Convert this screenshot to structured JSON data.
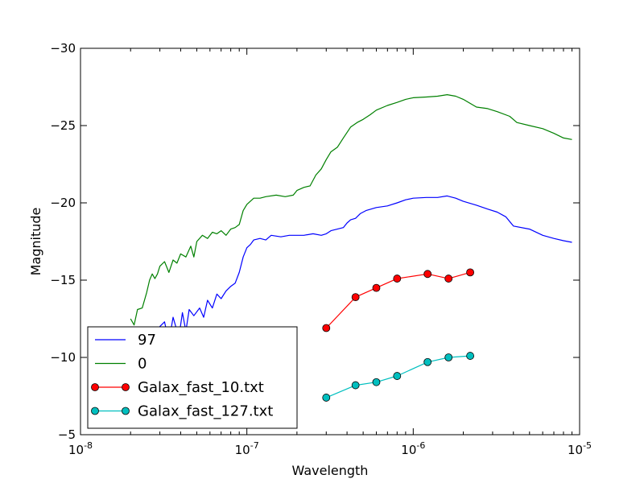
{
  "chart_data": {
    "type": "line",
    "xlabel": "Wavelength",
    "ylabel": "Magnitude",
    "x_scale": "log",
    "xlim": [
      1e-08,
      1e-05
    ],
    "ylim": [
      -5,
      -30
    ],
    "y_inverted": true,
    "grid": false,
    "legend_position": "lower-left",
    "x_ticks": [
      {
        "value": 1e-08,
        "base": "10",
        "exp": "-8"
      },
      {
        "value": 1e-07,
        "base": "10",
        "exp": "-7"
      },
      {
        "value": 1e-06,
        "base": "10",
        "exp": "-6"
      },
      {
        "value": 1e-05,
        "base": "10",
        "exp": "-5"
      }
    ],
    "y_ticks": [
      {
        "value": -30,
        "label": "−30"
      },
      {
        "value": -25,
        "label": "−25"
      },
      {
        "value": -20,
        "label": "−20"
      },
      {
        "value": -15,
        "label": "−15"
      },
      {
        "value": -10,
        "label": "−10"
      },
      {
        "value": -5,
        "label": "−5"
      }
    ],
    "series": [
      {
        "name": "97",
        "style": "line",
        "color": "#0000ff",
        "points": [
          [
            2.2e-08,
            -7.5
          ],
          [
            2.8e-08,
            -9.5
          ],
          [
            3e-08,
            -12.0
          ],
          [
            3.2e-08,
            -12.3
          ],
          [
            3.4e-08,
            -11.0
          ],
          [
            3.6e-08,
            -12.6
          ],
          [
            3.9e-08,
            -11.3
          ],
          [
            4.1e-08,
            -12.9
          ],
          [
            4.3e-08,
            -11.7
          ],
          [
            4.5e-08,
            -13.1
          ],
          [
            4.8e-08,
            -12.7
          ],
          [
            5.2e-08,
            -13.2
          ],
          [
            5.5e-08,
            -12.6
          ],
          [
            5.8e-08,
            -13.7
          ],
          [
            6.2e-08,
            -13.2
          ],
          [
            6.6e-08,
            -14.1
          ],
          [
            7e-08,
            -13.8
          ],
          [
            7.5e-08,
            -14.3
          ],
          [
            8e-08,
            -14.6
          ],
          [
            8.5e-08,
            -14.8
          ],
          [
            9e-08,
            -15.5
          ],
          [
            9.5e-08,
            -16.5
          ],
          [
            1e-07,
            -17.1
          ],
          [
            1.05e-07,
            -17.3
          ],
          [
            1.1e-07,
            -17.6
          ],
          [
            1.2e-07,
            -17.7
          ],
          [
            1.3e-07,
            -17.6
          ],
          [
            1.4e-07,
            -17.9
          ],
          [
            1.6e-07,
            -17.8
          ],
          [
            1.8e-07,
            -17.9
          ],
          [
            2e-07,
            -17.9
          ],
          [
            2.2e-07,
            -17.9
          ],
          [
            2.5e-07,
            -18.0
          ],
          [
            2.8e-07,
            -17.9
          ],
          [
            3e-07,
            -18.0
          ],
          [
            3.2e-07,
            -18.2
          ],
          [
            3.5e-07,
            -18.3
          ],
          [
            3.8e-07,
            -18.4
          ],
          [
            4e-07,
            -18.7
          ],
          [
            4.2e-07,
            -18.9
          ],
          [
            4.5e-07,
            -19.0
          ],
          [
            4.8e-07,
            -19.3
          ],
          [
            5.2e-07,
            -19.5
          ],
          [
            6e-07,
            -19.7
          ],
          [
            7e-07,
            -19.8
          ],
          [
            8e-07,
            -20.0
          ],
          [
            9e-07,
            -20.2
          ],
          [
            1e-06,
            -20.3
          ],
          [
            1.2e-06,
            -20.35
          ],
          [
            1.4e-06,
            -20.35
          ],
          [
            1.6e-06,
            -20.45
          ],
          [
            1.8e-06,
            -20.3
          ],
          [
            2e-06,
            -20.1
          ],
          [
            2.4e-06,
            -19.85
          ],
          [
            2.8e-06,
            -19.6
          ],
          [
            3.2e-06,
            -19.4
          ],
          [
            3.6e-06,
            -19.1
          ],
          [
            4e-06,
            -18.5
          ],
          [
            5e-06,
            -18.3
          ],
          [
            6e-06,
            -17.9
          ],
          [
            7e-06,
            -17.7
          ],
          [
            8e-06,
            -17.55
          ],
          [
            9e-06,
            -17.45
          ]
        ]
      },
      {
        "name": "0",
        "style": "line",
        "color": "#008000",
        "points": [
          [
            2e-08,
            -12.5
          ],
          [
            2.1e-08,
            -12.1
          ],
          [
            2.2e-08,
            -13.1
          ],
          [
            2.35e-08,
            -13.2
          ],
          [
            2.5e-08,
            -14.2
          ],
          [
            2.6e-08,
            -15.0
          ],
          [
            2.7e-08,
            -15.4
          ],
          [
            2.8e-08,
            -15.1
          ],
          [
            2.9e-08,
            -15.4
          ],
          [
            3e-08,
            -15.9
          ],
          [
            3.2e-08,
            -16.2
          ],
          [
            3.4e-08,
            -15.5
          ],
          [
            3.6e-08,
            -16.3
          ],
          [
            3.8e-08,
            -16.1
          ],
          [
            4e-08,
            -16.7
          ],
          [
            4.3e-08,
            -16.5
          ],
          [
            4.6e-08,
            -17.2
          ],
          [
            4.8e-08,
            -16.5
          ],
          [
            5e-08,
            -17.5
          ],
          [
            5.4e-08,
            -17.9
          ],
          [
            5.8e-08,
            -17.7
          ],
          [
            6.2e-08,
            -18.1
          ],
          [
            6.6e-08,
            -18.0
          ],
          [
            7e-08,
            -18.2
          ],
          [
            7.5e-08,
            -17.9
          ],
          [
            8e-08,
            -18.3
          ],
          [
            8.5e-08,
            -18.4
          ],
          [
            9e-08,
            -18.6
          ],
          [
            9.5e-08,
            -19.5
          ],
          [
            1e-07,
            -19.9
          ],
          [
            1.1e-07,
            -20.3
          ],
          [
            1.2e-07,
            -20.3
          ],
          [
            1.3e-07,
            -20.4
          ],
          [
            1.5e-07,
            -20.5
          ],
          [
            1.7e-07,
            -20.4
          ],
          [
            1.9e-07,
            -20.5
          ],
          [
            2e-07,
            -20.8
          ],
          [
            2.2e-07,
            -21.0
          ],
          [
            2.4e-07,
            -21.1
          ],
          [
            2.6e-07,
            -21.8
          ],
          [
            2.8e-07,
            -22.2
          ],
          [
            3e-07,
            -22.8
          ],
          [
            3.2e-07,
            -23.3
          ],
          [
            3.5e-07,
            -23.6
          ],
          [
            3.8e-07,
            -24.2
          ],
          [
            4.2e-07,
            -24.9
          ],
          [
            4.6e-07,
            -25.2
          ],
          [
            5e-07,
            -25.4
          ],
          [
            5.5e-07,
            -25.7
          ],
          [
            6e-07,
            -26.0
          ],
          [
            7e-07,
            -26.3
          ],
          [
            8e-07,
            -26.5
          ],
          [
            9e-07,
            -26.7
          ],
          [
            1e-06,
            -26.8
          ],
          [
            1.2e-06,
            -26.85
          ],
          [
            1.4e-06,
            -26.9
          ],
          [
            1.6e-06,
            -27.0
          ],
          [
            1.8e-06,
            -26.9
          ],
          [
            2e-06,
            -26.7
          ],
          [
            2.4e-06,
            -26.2
          ],
          [
            2.8e-06,
            -26.1
          ],
          [
            3.2e-06,
            -25.9
          ],
          [
            3.8e-06,
            -25.6
          ],
          [
            4.2e-06,
            -25.2
          ],
          [
            5e-06,
            -25.0
          ],
          [
            6e-06,
            -24.8
          ],
          [
            7e-06,
            -24.5
          ],
          [
            8e-06,
            -24.2
          ],
          [
            9e-06,
            -24.1
          ]
        ]
      },
      {
        "name": "Galax_fast_10.txt",
        "style": "line-marker",
        "color": "#ff0000",
        "points": [
          [
            3e-07,
            -11.9
          ],
          [
            4.5e-07,
            -13.9
          ],
          [
            6e-07,
            -14.5
          ],
          [
            8e-07,
            -15.1
          ],
          [
            1.22e-06,
            -15.4
          ],
          [
            1.63e-06,
            -15.1
          ],
          [
            2.2e-06,
            -15.5
          ]
        ]
      },
      {
        "name": "Galax_fast_127.txt",
        "style": "line-marker",
        "color": "#00bfbf",
        "points": [
          [
            3e-07,
            -7.4
          ],
          [
            4.5e-07,
            -8.2
          ],
          [
            6e-07,
            -8.4
          ],
          [
            8e-07,
            -8.8
          ],
          [
            1.22e-06,
            -9.7
          ],
          [
            1.63e-06,
            -10.0
          ],
          [
            2.2e-06,
            -10.1
          ]
        ]
      }
    ]
  }
}
